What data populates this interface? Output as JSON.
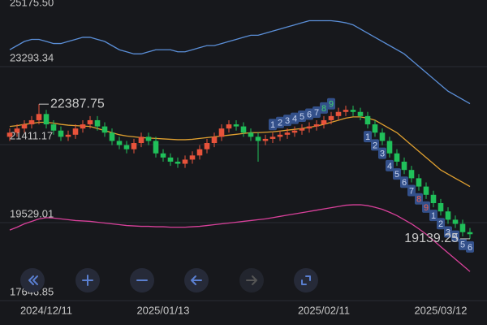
{
  "chart_data": {
    "type": "candlestick",
    "categories": [
      null,
      null,
      null,
      null,
      null,
      "2024/12/11",
      null,
      null,
      null,
      null,
      null,
      null,
      null,
      null,
      null,
      null,
      null,
      null,
      null,
      null,
      null,
      "2025/01/13",
      null,
      null,
      null,
      null,
      null,
      null,
      null,
      null,
      null,
      null,
      null,
      null,
      null,
      null,
      null,
      null,
      null,
      null,
      null,
      null,
      null,
      "2025/02/11",
      null,
      null,
      null,
      null,
      null,
      null,
      null,
      null,
      null,
      null,
      null,
      null,
      null,
      null,
      null,
      "2025/03/12",
      null,
      null,
      null,
      null
    ],
    "open": [
      21600,
      21700,
      21800,
      21900,
      22000,
      22150,
      21900,
      21750,
      21600,
      21650,
      21800,
      21900,
      22000,
      21850,
      21700,
      21500,
      21400,
      21300,
      21450,
      21600,
      21500,
      21200,
      21100,
      21000,
      20950,
      21050,
      21150,
      21300,
      21450,
      21600,
      21800,
      21900,
      21850,
      21700,
      21600,
      21500,
      21550,
      21600,
      21650,
      21700,
      21750,
      21800,
      21850,
      21900,
      22000,
      22100,
      22200,
      22250,
      22200,
      22100,
      21900,
      21700,
      21500,
      21200,
      21000,
      20800,
      20600,
      20400,
      20200,
      20000,
      19800,
      19600,
      19500,
      19300
    ],
    "high": [
      21800,
      21900,
      22000,
      22100,
      22387.75,
      22250,
      22000,
      21850,
      21750,
      21900,
      22000,
      22100,
      22100,
      21950,
      21800,
      21600,
      21500,
      21550,
      21700,
      21700,
      21600,
      21300,
      21200,
      21100,
      21150,
      21250,
      21400,
      21550,
      21700,
      21900,
      22000,
      22000,
      21950,
      21800,
      21700,
      21650,
      21700,
      21750,
      21800,
      21850,
      21900,
      21950,
      22000,
      22100,
      22200,
      22300,
      22350,
      22350,
      22300,
      22200,
      22000,
      21800,
      21600,
      21300,
      21100,
      20900,
      20700,
      20500,
      20300,
      20100,
      19900,
      19700,
      19600,
      19400
    ],
    "low": [
      21500,
      21600,
      21700,
      21800,
      21900,
      21800,
      21650,
      21500,
      21500,
      21550,
      21700,
      21800,
      21750,
      21600,
      21400,
      21300,
      21200,
      21200,
      21350,
      21400,
      21100,
      21000,
      20900,
      20850,
      20850,
      20950,
      21050,
      21200,
      21350,
      21500,
      21700,
      21750,
      21600,
      21500,
      21000,
      21400,
      21450,
      21500,
      21550,
      21600,
      21650,
      21700,
      21750,
      21800,
      21900,
      22000,
      22100,
      22100,
      22000,
      21800,
      21600,
      21400,
      21100,
      20900,
      20700,
      20500,
      20300,
      20100,
      19900,
      19700,
      19500,
      19400,
      19200,
      19139.25
    ],
    "close": [
      21700,
      21800,
      21900,
      22000,
      22150,
      21900,
      21750,
      21600,
      21650,
      21800,
      21900,
      22000,
      21850,
      21700,
      21500,
      21400,
      21300,
      21450,
      21600,
      21500,
      21200,
      21100,
      21000,
      20950,
      21050,
      21150,
      21300,
      21450,
      21600,
      21800,
      21900,
      21850,
      21700,
      21600,
      21500,
      21550,
      21600,
      21650,
      21700,
      21750,
      21800,
      21850,
      21900,
      22000,
      22100,
      22200,
      22250,
      22200,
      22100,
      21900,
      21700,
      21500,
      21200,
      21000,
      20800,
      20600,
      20400,
      20200,
      20000,
      19800,
      19600,
      19500,
      19300,
      19250
    ],
    "up_color": "#e8533b",
    "down_color": "#20c05a",
    "series": [
      {
        "color": "#5b8fd8",
        "values": [
          23700,
          23800,
          23900,
          23950,
          23950,
          23900,
          23850,
          23850,
          23900,
          23950,
          24000,
          24000,
          23950,
          23900,
          23800,
          23700,
          23650,
          23600,
          23600,
          23650,
          23700,
          23700,
          23700,
          23650,
          23650,
          23700,
          23750,
          23800,
          23800,
          23850,
          23900,
          23950,
          24000,
          24050,
          24050,
          24100,
          24150,
          24200,
          24250,
          24300,
          24350,
          24400,
          24400,
          24400,
          24400,
          24380,
          24350,
          24300,
          24200,
          24100,
          24000,
          23900,
          23800,
          23700,
          23600,
          23450,
          23300,
          23150,
          23000,
          22850,
          22700,
          22600,
          22500,
          22400
        ]
      },
      {
        "color": "#e0a030",
        "values": [
          21850,
          21870,
          21900,
          21920,
          21950,
          21950,
          21930,
          21900,
          21880,
          21870,
          21860,
          21850,
          21800,
          21750,
          21700,
          21650,
          21620,
          21600,
          21580,
          21570,
          21560,
          21550,
          21540,
          21530,
          21530,
          21540,
          21560,
          21580,
          21600,
          21620,
          21640,
          21660,
          21680,
          21700,
          21700,
          21710,
          21720,
          21740,
          21760,
          21780,
          21800,
          21830,
          21860,
          21900,
          21950,
          22000,
          22050,
          22080,
          22080,
          22050,
          22000,
          21900,
          21800,
          21700,
          21550,
          21400,
          21250,
          21100,
          20950,
          20800,
          20700,
          20600,
          20500,
          20400
        ]
      },
      {
        "color": "#d8409a",
        "values": [
          19350,
          19420,
          19500,
          19560,
          19620,
          19650,
          19640,
          19620,
          19600,
          19580,
          19570,
          19560,
          19540,
          19520,
          19500,
          19480,
          19460,
          19450,
          19440,
          19440,
          19430,
          19430,
          19420,
          19420,
          19420,
          19430,
          19440,
          19460,
          19480,
          19500,
          19520,
          19540,
          19560,
          19580,
          19600,
          19620,
          19650,
          19680,
          19710,
          19740,
          19770,
          19800,
          19830,
          19860,
          19890,
          19920,
          19950,
          19960,
          19960,
          19940,
          19900,
          19850,
          19780,
          19700,
          19600,
          19500,
          19380,
          19250,
          19100,
          18950,
          18800,
          18650,
          18500,
          18350
        ]
      }
    ],
    "sell_setup": [
      null,
      null,
      null,
      null,
      null,
      null,
      null,
      null,
      null,
      null,
      null,
      null,
      null,
      null,
      null,
      null,
      null,
      null,
      null,
      null,
      null,
      null,
      null,
      null,
      null,
      null,
      null,
      null,
      null,
      null,
      null,
      null,
      null,
      null,
      null,
      null,
      1,
      2,
      3,
      4,
      5,
      6,
      7,
      8,
      9,
      null,
      null,
      null,
      null,
      null,
      null,
      null,
      null,
      null,
      null,
      null,
      null,
      null,
      null,
      null,
      null,
      null,
      null,
      null
    ],
    "buy_setup": [
      null,
      null,
      null,
      null,
      null,
      null,
      null,
      null,
      null,
      null,
      null,
      null,
      null,
      null,
      null,
      null,
      null,
      null,
      null,
      null,
      null,
      null,
      null,
      null,
      null,
      null,
      null,
      null,
      null,
      null,
      null,
      null,
      null,
      null,
      null,
      null,
      null,
      null,
      null,
      null,
      null,
      null,
      null,
      null,
      null,
      null,
      null,
      null,
      null,
      1,
      2,
      3,
      4,
      5,
      6,
      7,
      8,
      9,
      1,
      2,
      3,
      4,
      5,
      6
    ],
    "annotations": [
      "22387.75",
      "19139.25"
    ],
    "ylim": [
      17060,
      24900
    ],
    "yticks": [
      17646.85,
      19529.01,
      21411.17,
      23293.34,
      {
        "value": 25175.5,
        "label": "25175.50"
      }
    ],
    "grid": true
  }
}
